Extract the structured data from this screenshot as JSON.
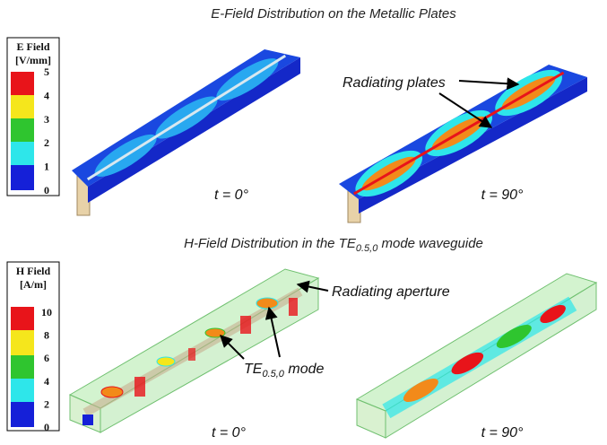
{
  "e_field": {
    "title": "E-Field Distribution on the Metallic Plates",
    "legend": {
      "title": "E Field",
      "unit": "[V/mm]",
      "ticks": [
        5,
        4,
        3,
        2,
        1,
        0
      ]
    },
    "panels": [
      {
        "label": "t = 0°"
      },
      {
        "label": "t = 90°"
      }
    ],
    "annotation": "Radiating plates"
  },
  "h_field": {
    "title": {
      "before": "H-Field Distribution in the TE",
      "subscript": "0.5,0",
      "after": " mode waveguide"
    },
    "legend": {
      "title": "H Field",
      "unit": "[A/m]",
      "ticks": [
        10,
        8,
        6,
        4,
        2,
        0
      ]
    },
    "panels": [
      {
        "label": "t = 0°"
      },
      {
        "label": "t = 90°"
      }
    ],
    "annotations": {
      "aperture": "Radiating aperture",
      "mode": {
        "before": "TE",
        "subscript": "0.5,0",
        "after": " mode"
      }
    }
  }
}
